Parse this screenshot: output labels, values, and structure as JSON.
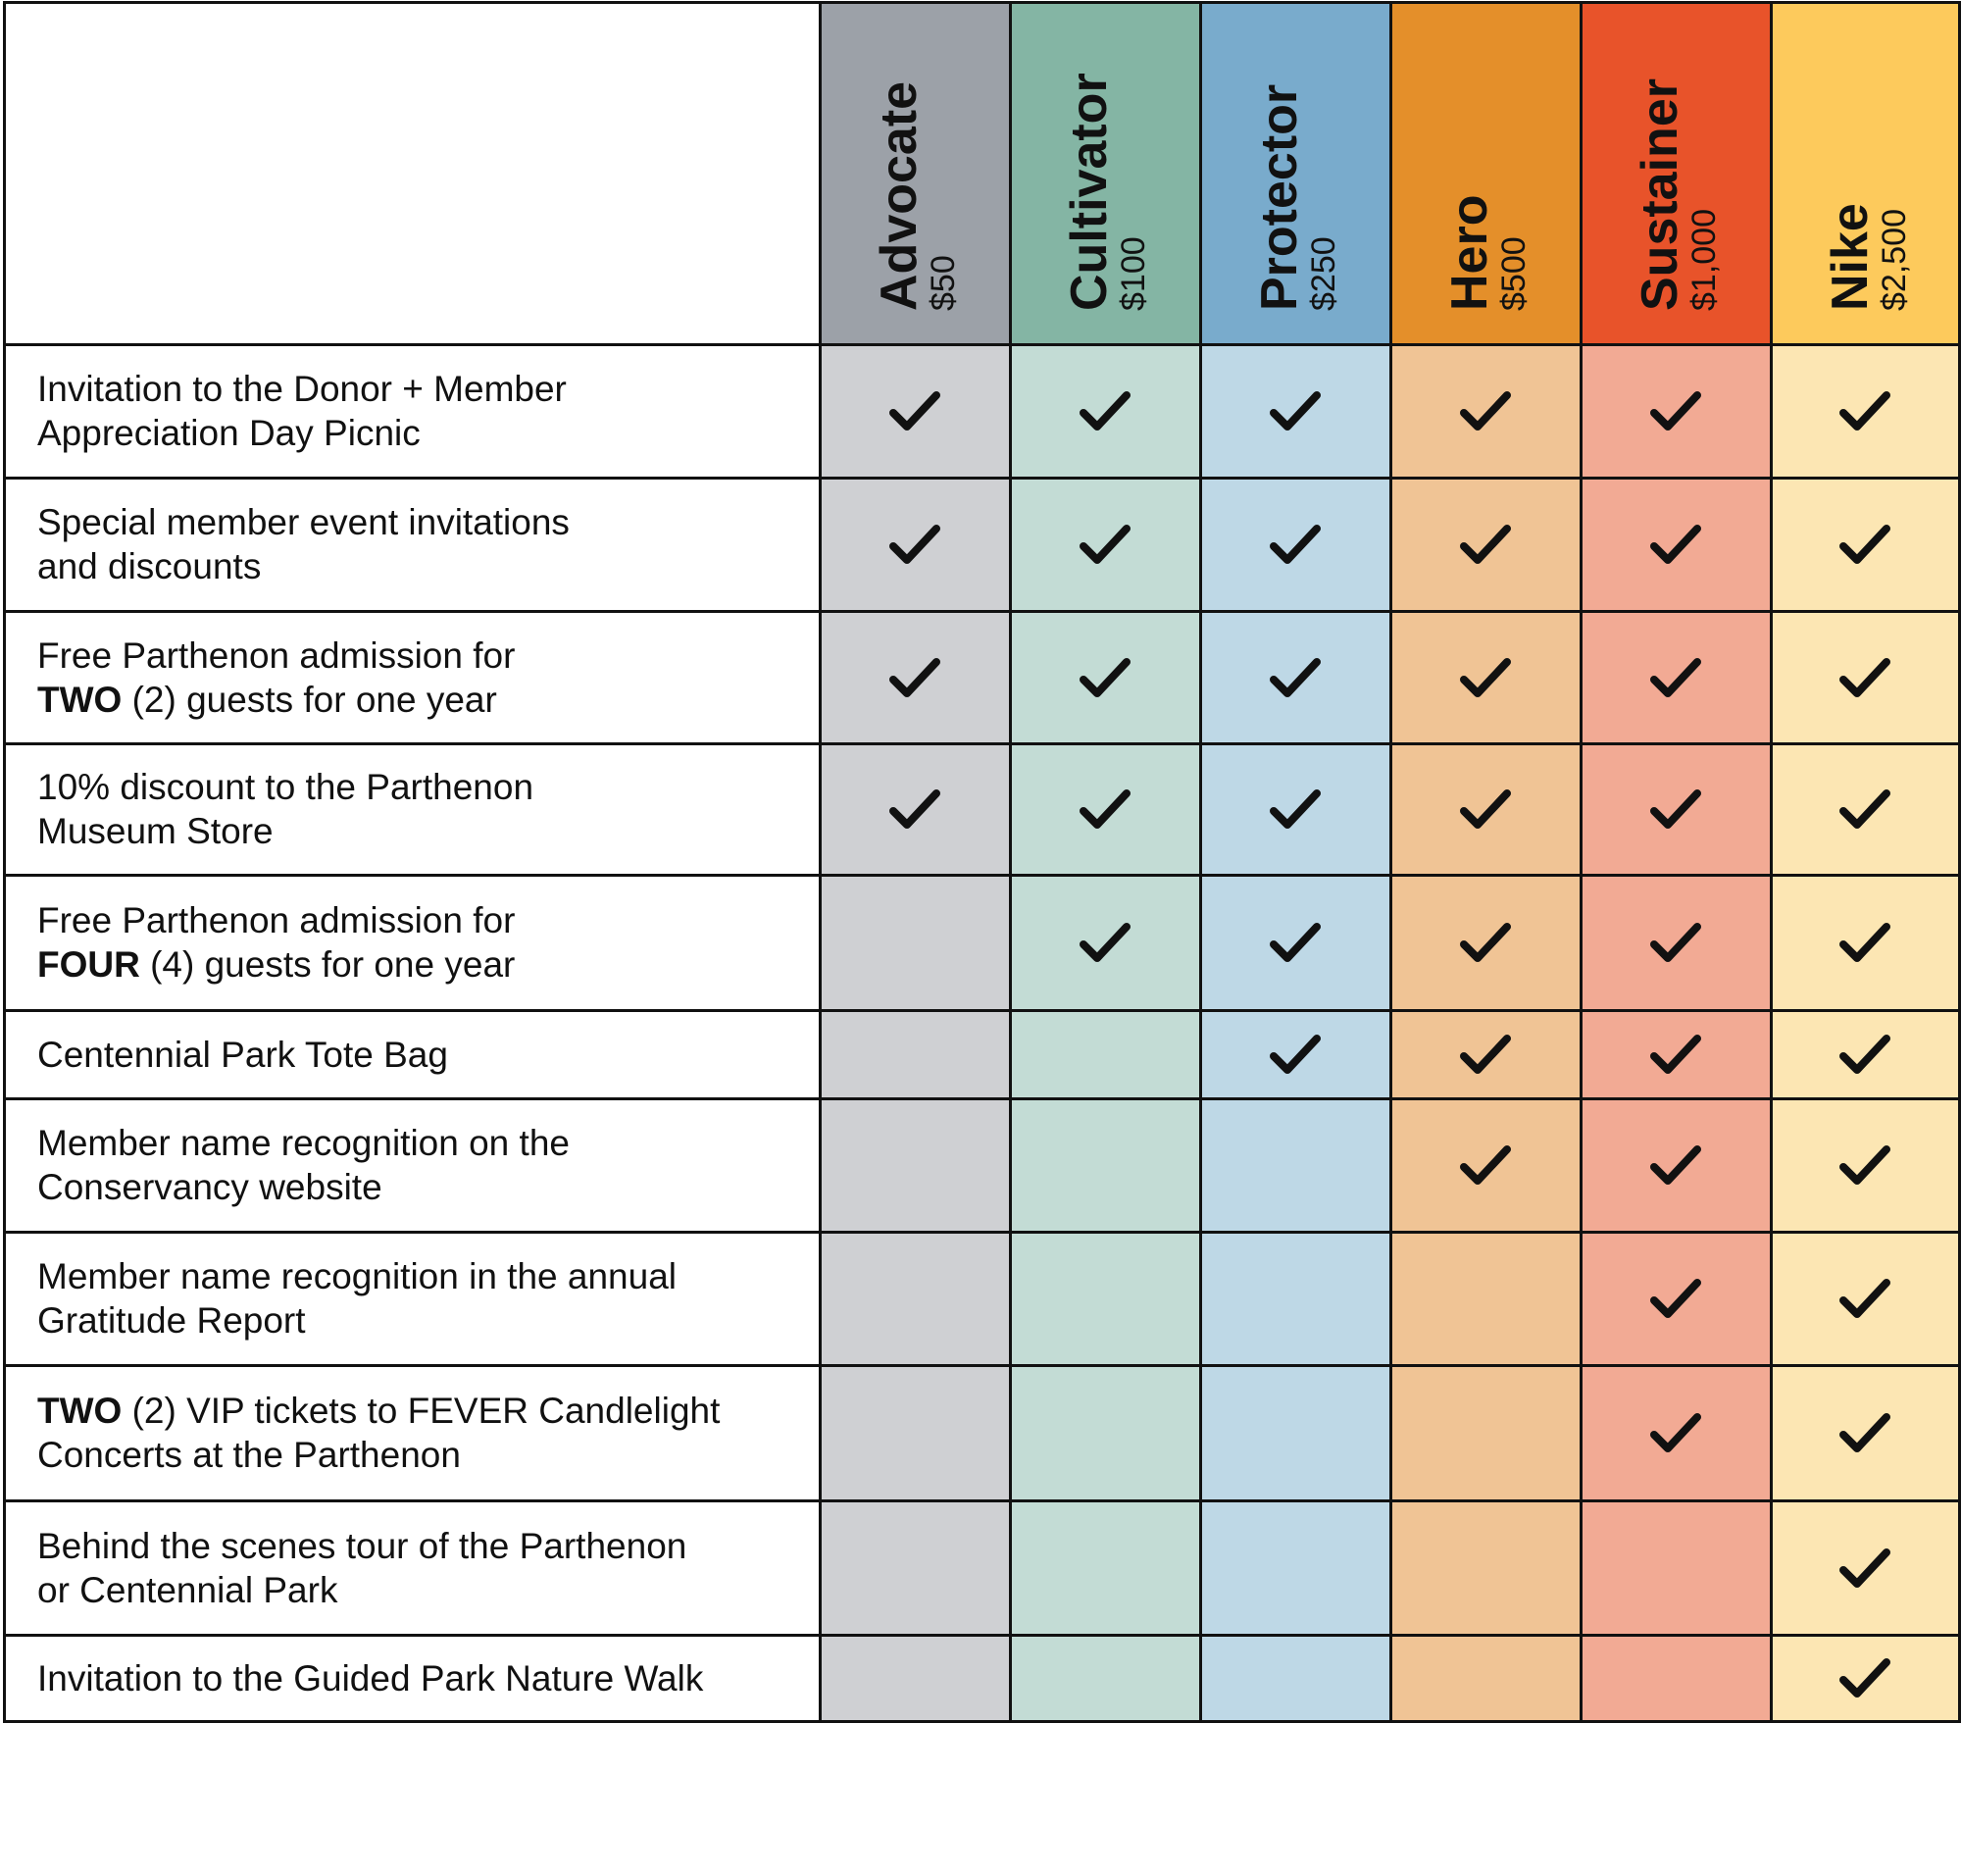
{
  "tiers": [
    {
      "name": "Advocate",
      "price": "$50",
      "header_color": "#9ca1a8",
      "cell_color": "#cfd0d3"
    },
    {
      "name": "Cultivator",
      "price": "$100",
      "header_color": "#84b5a4",
      "cell_color": "#c3dcd5"
    },
    {
      "name": "Protector",
      "price": "$250",
      "header_color": "#79abcc",
      "cell_color": "#bed8e6"
    },
    {
      "name": "Hero",
      "price": "$500",
      "header_color": "#e48f2a",
      "cell_color": "#f0c495"
    },
    {
      "name": "Sustainer",
      "price": "$1,000",
      "header_color": "#e8532a",
      "cell_color": "#f2aa94"
    },
    {
      "name": "Nike",
      "price": "$2,500",
      "header_color": "#fdca5c",
      "cell_color": "#fce6b3"
    }
  ],
  "benefits": [
    {
      "lines": [
        [
          {
            "t": "Invitation to the Donor + Member"
          }
        ],
        [
          {
            "t": "Appreciation Day Picnic"
          }
        ]
      ],
      "checks": [
        true,
        true,
        true,
        true,
        true,
        true
      ]
    },
    {
      "lines": [
        [
          {
            "t": "Special member event invitations"
          }
        ],
        [
          {
            "t": "and discounts"
          }
        ]
      ],
      "checks": [
        true,
        true,
        true,
        true,
        true,
        true
      ]
    },
    {
      "lines": [
        [
          {
            "t": "Free Parthenon admission for"
          }
        ],
        [
          {
            "t": "TWO",
            "b": true
          },
          {
            "t": " (2) guests for one year"
          }
        ]
      ],
      "checks": [
        true,
        true,
        true,
        true,
        true,
        true
      ]
    },
    {
      "lines": [
        [
          {
            "t": "10% discount to the Parthenon"
          }
        ],
        [
          {
            "t": "Museum Store"
          }
        ]
      ],
      "checks": [
        true,
        true,
        true,
        true,
        true,
        true
      ]
    },
    {
      "lines": [
        [
          {
            "t": "Free Parthenon admission for"
          }
        ],
        [
          {
            "t": "FOUR",
            "b": true
          },
          {
            "t": " (4) guests for one year"
          }
        ]
      ],
      "checks": [
        false,
        true,
        true,
        true,
        true,
        true
      ]
    },
    {
      "lines": [
        [
          {
            "t": "Centennial Park Tote Bag"
          }
        ]
      ],
      "checks": [
        false,
        false,
        true,
        true,
        true,
        true
      ]
    },
    {
      "lines": [
        [
          {
            "t": "Member name recognition on the"
          }
        ],
        [
          {
            "t": "Conservancy website"
          }
        ]
      ],
      "checks": [
        false,
        false,
        false,
        true,
        true,
        true
      ]
    },
    {
      "lines": [
        [
          {
            "t": "Member name recognition in the annual"
          }
        ],
        [
          {
            "t": "Gratitude Report"
          }
        ]
      ],
      "checks": [
        false,
        false,
        false,
        false,
        true,
        true
      ]
    },
    {
      "lines": [
        [
          {
            "t": "TWO",
            "b": true
          },
          {
            "t": " (2) VIP tickets to FEVER Candlelight"
          }
        ],
        [
          {
            "t": "Concerts at the Parthenon"
          }
        ]
      ],
      "checks": [
        false,
        false,
        false,
        false,
        true,
        true
      ]
    },
    {
      "lines": [
        [
          {
            "t": "Behind the scenes tour of the Parthenon"
          }
        ],
        [
          {
            "t": "or Centennial Park"
          }
        ]
      ],
      "checks": [
        false,
        false,
        false,
        false,
        false,
        true
      ]
    },
    {
      "lines": [
        [
          {
            "t": "Invitation to the Guided Park Nature Walk"
          }
        ]
      ],
      "checks": [
        false,
        false,
        false,
        false,
        false,
        true
      ]
    }
  ],
  "icons": {
    "check": "checkmark-icon"
  }
}
